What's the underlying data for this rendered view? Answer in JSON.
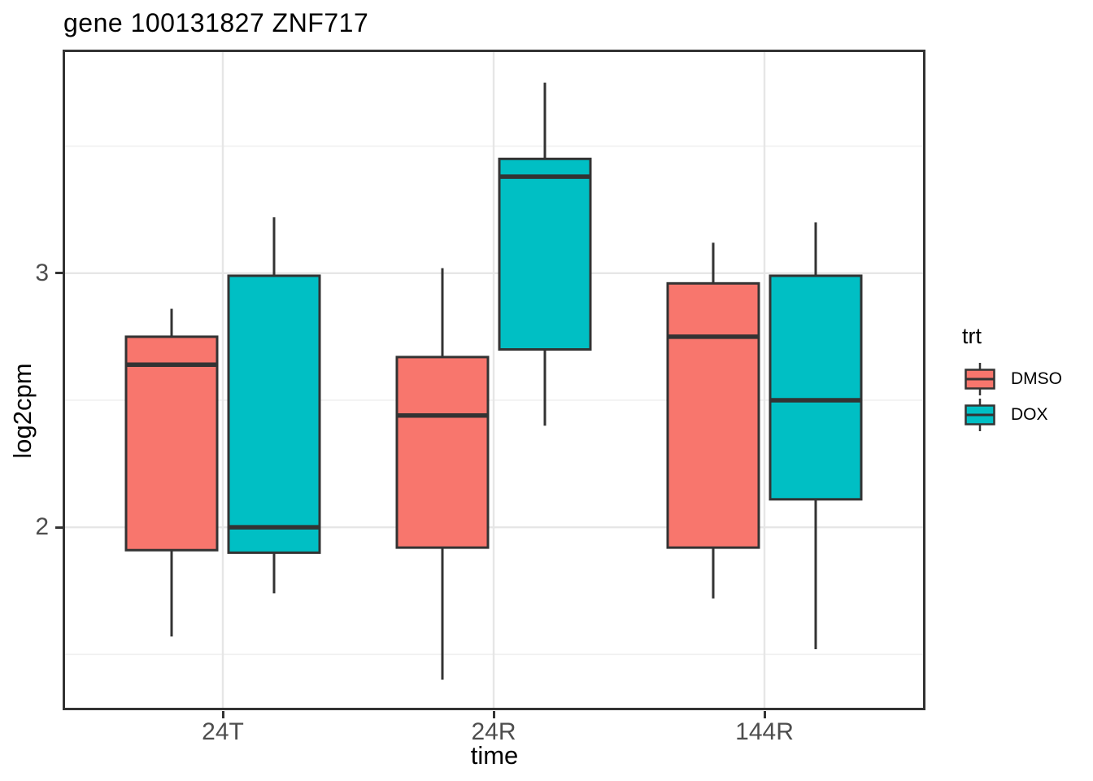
{
  "chart_data": {
    "type": "boxplot",
    "title": "gene 100131827 ZNF717",
    "xlabel": "time",
    "ylabel": "log2cpm",
    "categories": [
      "24T",
      "24R",
      "144R"
    ],
    "y_axis": {
      "ticks": [
        3,
        2
      ],
      "minor_ticks": [
        3.5,
        2.5,
        1.5
      ],
      "ylim": [
        1.28,
        3.88
      ]
    },
    "legend": {
      "title": "trt",
      "position": "right",
      "entries": [
        {
          "label": "DMSO",
          "color": "#F8766D"
        },
        {
          "label": "DOX",
          "color": "#00BFC4"
        }
      ]
    },
    "series": [
      {
        "name": "DMSO",
        "color": "#F8766D",
        "boxes": [
          {
            "category": "24T",
            "whisker_low": 1.57,
            "q1": 1.91,
            "median": 2.64,
            "q3": 2.75,
            "whisker_high": 2.86
          },
          {
            "category": "24R",
            "whisker_low": 1.4,
            "q1": 1.92,
            "median": 2.44,
            "q3": 2.67,
            "whisker_high": 3.02
          },
          {
            "category": "144R",
            "whisker_low": 1.72,
            "q1": 1.92,
            "median": 2.75,
            "q3": 2.96,
            "whisker_high": 3.12
          }
        ]
      },
      {
        "name": "DOX",
        "color": "#00BFC4",
        "boxes": [
          {
            "category": "24T",
            "whisker_low": 1.74,
            "q1": 1.9,
            "median": 2.0,
            "q3": 2.99,
            "whisker_high": 3.22
          },
          {
            "category": "24R",
            "whisker_low": 2.4,
            "q1": 2.7,
            "median": 3.38,
            "q3": 3.45,
            "whisker_high": 3.75
          },
          {
            "category": "144R",
            "whisker_low": 1.52,
            "q1": 2.11,
            "median": 2.5,
            "q3": 2.99,
            "whisker_high": 3.2
          }
        ]
      }
    ],
    "style": {
      "outline": "#333333",
      "panel_border": "#333333",
      "grid_major": "#E6E6E6",
      "grid_minor": "#F0F0F0",
      "tick_label_color": "#4d4d4d"
    }
  }
}
